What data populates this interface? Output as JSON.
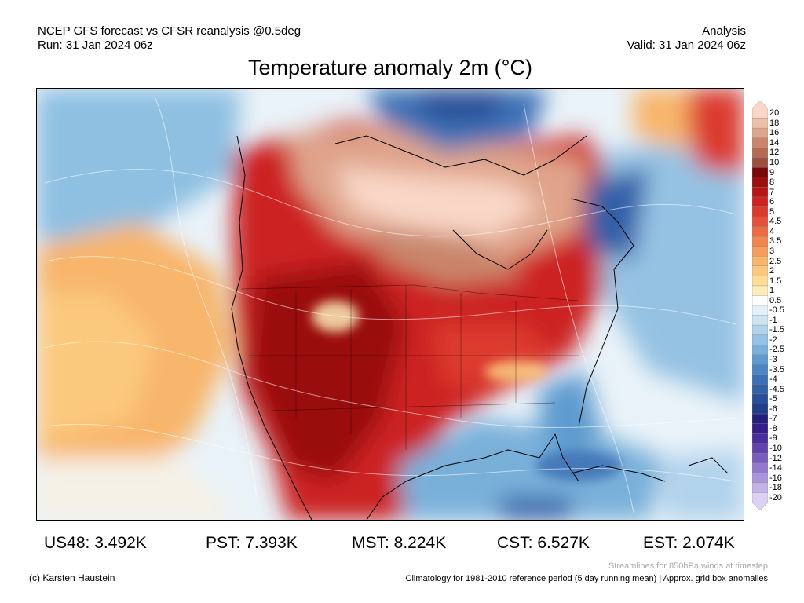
{
  "header": {
    "left_line1": "NCEP GFS forecast vs CFSR reanalysis @0.5deg",
    "left_line2": "Run: 31 Jan 2024 06z",
    "right_line1": "Analysis",
    "right_line2": "Valid: 31 Jan 2024 06z"
  },
  "title": "Temperature anomaly 2m (°C)",
  "colorbar": {
    "labels": [
      "20",
      "18",
      "16",
      "14",
      "12",
      "10",
      "9",
      "8",
      "7",
      "6",
      "5",
      "4.5",
      "4",
      "3.5",
      "3",
      "2.5",
      "2",
      "1.5",
      "1",
      "0.5",
      "-0.5",
      "-1",
      "-1.5",
      "-2",
      "-2.5",
      "-3",
      "-3.5",
      "-4",
      "-4.5",
      "-5",
      "-6",
      "-7",
      "-8",
      "-9",
      "-10",
      "-12",
      "-14",
      "-16",
      "-18",
      "-20"
    ],
    "colors": [
      "#f9d6c6",
      "#eec0aa",
      "#dfa48b",
      "#c9866c",
      "#b36a53",
      "#9c5140",
      "#7a0a0a",
      "#9a0f0f",
      "#b81616",
      "#cc2222",
      "#dc3a2e",
      "#e4503a",
      "#ec6a44",
      "#f28550",
      "#f59e5c",
      "#f8b56c",
      "#fbc97e",
      "#fcdc96",
      "#fdecb8",
      "#ffffff",
      "#e4f1f9",
      "#cde4f3",
      "#b2d3ec",
      "#95c2e3",
      "#79b0da",
      "#5f9bcf",
      "#4c86c3",
      "#3d71b5",
      "#3261a7",
      "#2a4f97",
      "#22408a",
      "#241f7a",
      "#35208a",
      "#4a2f9c",
      "#6244ad",
      "#7a5cbd",
      "#9378cc",
      "#ab95db",
      "#c4b3e8",
      "#ddd2f3"
    ]
  },
  "stats": [
    {
      "label": "US48: 3.492K"
    },
    {
      "label": "PST: 7.393K"
    },
    {
      "label": "MST: 8.224K"
    },
    {
      "label": "CST: 6.527K"
    },
    {
      "label": "EST: 2.074K"
    }
  ],
  "footer": {
    "credit": "(c) Karsten Haustein",
    "streamlines_note": "Streamlines for 850hPa winds at timestep",
    "climatology_note": "Climatology for 1981-2010 reference period (5 day running mean) | Approx. grid box anomalies"
  }
}
